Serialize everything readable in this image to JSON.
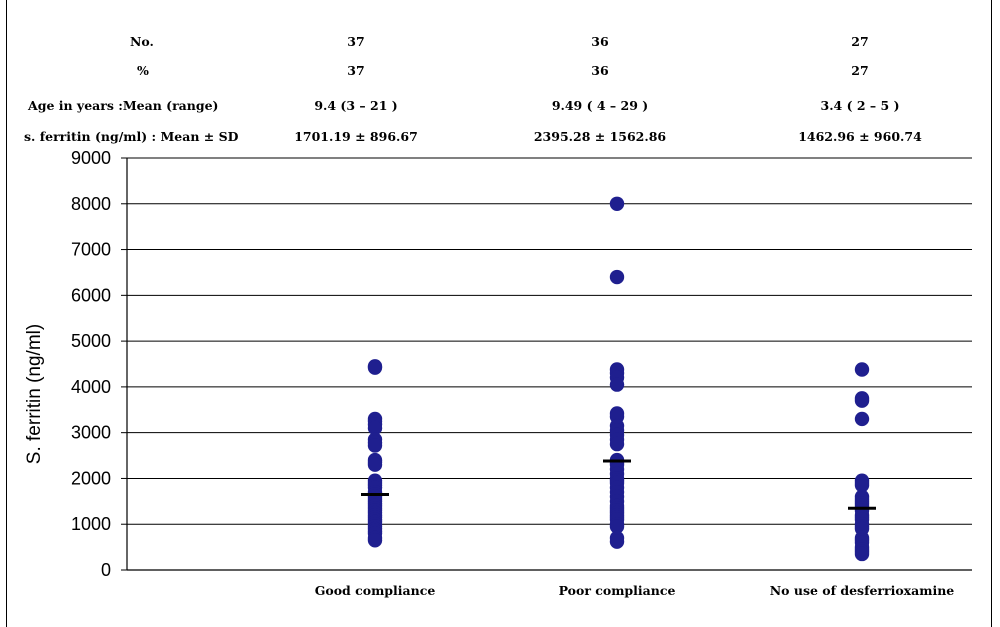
{
  "header_table": {
    "rows": [
      {
        "label": "No.",
        "values": [
          "37",
          "36",
          "27"
        ]
      },
      {
        "label": "%",
        "values": [
          "37",
          "36",
          "27"
        ]
      },
      {
        "label": "Age in years :Mean (range)",
        "values": [
          "9.4 (3 – 21 )",
          "9.49 ( 4 – 29 )",
          "3.4 ( 2 – 5 )"
        ]
      },
      {
        "label": "s. ferritin (ng/ml) : Mean ± SD",
        "values": [
          "1701.19 ± 896.67",
          "2395.28 ± 1562.86",
          "1462.96 ± 960.74"
        ]
      }
    ]
  },
  "chart_data": {
    "type": "scatter",
    "ylabel": "S. ferritin (ng/ml)",
    "xlabel": "",
    "ylim": [
      0,
      9000
    ],
    "yticks": [
      0,
      1000,
      2000,
      3000,
      4000,
      5000,
      6000,
      7000,
      8000,
      9000
    ],
    "grid": true,
    "categories": [
      "Good compliance",
      "Poor compliance",
      "No use of  desferrioxamine"
    ],
    "colors": {
      "points": "#1f1f8f",
      "mean_marker": "#000000",
      "grid": "#000000"
    },
    "series": [
      {
        "points": [
          4450,
          4420,
          3300,
          3250,
          3180,
          3100,
          2850,
          2780,
          2720,
          2400,
          2350,
          2300,
          1950,
          1900,
          1850,
          1800,
          1700,
          1650,
          1600,
          1550,
          1500,
          1450,
          1400,
          1350,
          1300,
          1250,
          1200,
          1150,
          1100,
          1050,
          1000,
          950,
          900,
          850,
          800,
          700,
          650
        ],
        "mean": 1650
      },
      {
        "points": [
          8000,
          6400,
          4380,
          4300,
          4200,
          4050,
          3420,
          3350,
          3150,
          3050,
          2950,
          2850,
          2750,
          2400,
          2350,
          2300,
          2200,
          2100,
          2000,
          1950,
          1900,
          1800,
          1700,
          1600,
          1500,
          1400,
          1350,
          1300,
          1250,
          1200,
          1150,
          1100,
          1000,
          950,
          700,
          620
        ],
        "mean": 2380
      },
      {
        "points": [
          4380,
          3750,
          3700,
          3300,
          1950,
          1900,
          1850,
          1600,
          1550,
          1500,
          1450,
          1400,
          1350,
          1300,
          1200,
          1150,
          1100,
          1000,
          950,
          900,
          700,
          650,
          600,
          500,
          450,
          400,
          350
        ],
        "mean": 1350
      }
    ]
  }
}
